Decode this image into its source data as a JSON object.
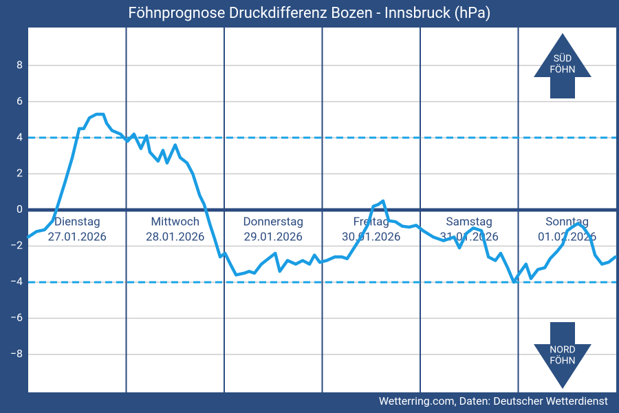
{
  "chart_data": {
    "type": "line",
    "title": "Föhnprognose Druckdifferenz Bozen - Innsbruck (hPa)",
    "footer": "Wetterring.com, Daten: Deutscher Wetterdienst",
    "xlim": [
      0,
      144
    ],
    "xticks": [
      24,
      48,
      72,
      96,
      120
    ],
    "ylim": [
      -10.1,
      10.1
    ],
    "yticks": [
      {
        "value": -8,
        "label": "−8"
      },
      {
        "value": -6,
        "label": "−6"
      },
      {
        "value": -4,
        "label": "−4"
      },
      {
        "value": -2,
        "label": "−2"
      },
      0,
      2,
      4,
      6,
      8
    ],
    "grid": true,
    "reference_line": 0,
    "thresholds": [
      4,
      -4
    ],
    "days": [
      {
        "name": "Dienstag",
        "date": "27.01.2026"
      },
      {
        "name": "Mittwoch",
        "date": "28.01.2026"
      },
      {
        "name": "Donnerstag",
        "date": "29.01.2026"
      },
      {
        "name": "Freitag",
        "date": "30.01.2026"
      },
      {
        "name": "Samstag",
        "date": "31.01.2026"
      },
      {
        "name": "Sonntag",
        "date": "01.02.2026"
      }
    ],
    "annotations": {
      "south": [
        "SÜD",
        "FÖHN"
      ],
      "north": [
        "NORD",
        "FÖHN"
      ]
    },
    "series": [
      {
        "color": "#1a9de3",
        "x": [
          0,
          2,
          4,
          6,
          6.9,
          9.1,
          10.8,
          12.5,
          13.6,
          15,
          16.7,
          18.4,
          19.2,
          20.5,
          22.6,
          24.3,
          25.9,
          27.6,
          29,
          29.8,
          31.8,
          33,
          34,
          36,
          37.2,
          38.9,
          40.3,
          42,
          43.1,
          44.5,
          45.8,
          47,
          48.2,
          49.5,
          50.9,
          52.9,
          54.1,
          55.4,
          57.1,
          58.8,
          60.5,
          61.6,
          63.5,
          65.5,
          67.2,
          68.9,
          70.1,
          71.4,
          73.1,
          75.1,
          76.8,
          78.1,
          79.8,
          81.5,
          83.2,
          84.5,
          85.7,
          86.9,
          88.3,
          89.9,
          91.6,
          93.3,
          95,
          96.7,
          99.2,
          101.7,
          104.3,
          105.6,
          107.3,
          109,
          111,
          112.7,
          114.4,
          115.7,
          117.4,
          118.9,
          120.3,
          121.9,
          123.1,
          124.8,
          126.5,
          127.8,
          129.5,
          130.9,
          132,
          133.2,
          134.6,
          135.9,
          137.6,
          138.8,
          140.5,
          142.1,
          143.8
        ],
        "values": [
          -1.5,
          -1.2,
          -1.1,
          -0.6,
          0,
          1.6,
          2.9,
          4.5,
          4.5,
          5.1,
          5.3,
          5.3,
          4.8,
          4.4,
          4.2,
          3.8,
          4.2,
          3.4,
          4.1,
          3.2,
          2.7,
          3.3,
          2.6,
          3.6,
          2.9,
          2.6,
          2.0,
          0.8,
          0.3,
          -0.8,
          -1.7,
          -2.6,
          -2.4,
          -3.0,
          -3.6,
          -3.5,
          -3.4,
          -3.5,
          -3.0,
          -2.7,
          -2.4,
          -3.4,
          -2.8,
          -3.0,
          -2.8,
          -3.0,
          -2.5,
          -2.9,
          -2.8,
          -2.6,
          -2.6,
          -2.7,
          -2.1,
          -1.5,
          -0.8,
          0.2,
          0.3,
          0.5,
          -0.6,
          -0.65,
          -0.9,
          -0.95,
          -0.85,
          -1.15,
          -1.5,
          -1.7,
          -1.5,
          -2.1,
          -1.3,
          -1.0,
          -1.15,
          -2.6,
          -2.8,
          -2.4,
          -3.2,
          -4.0,
          -3.5,
          -3.0,
          -3.8,
          -3.3,
          -3.2,
          -2.7,
          -2.3,
          -1.9,
          -1.15,
          -0.95,
          -0.75,
          -0.95,
          -1.5,
          -2.5,
          -3.0,
          -2.9,
          -2.6
        ]
      }
    ]
  }
}
